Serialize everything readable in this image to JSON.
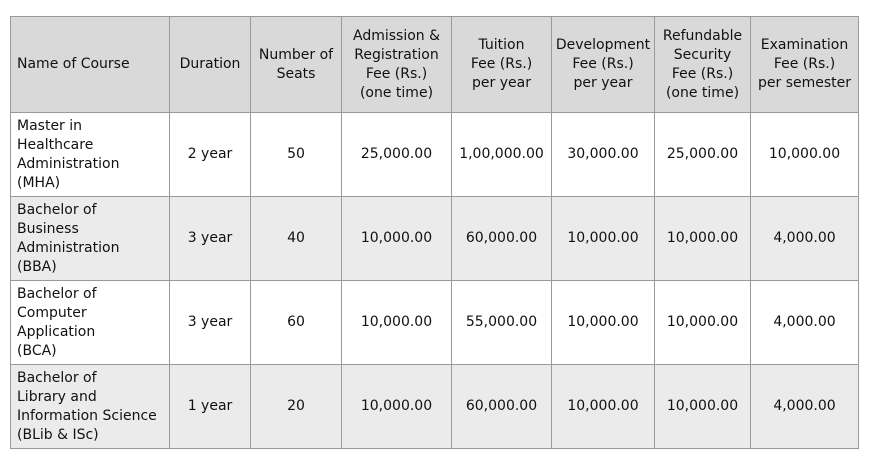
{
  "table": {
    "header": [
      [
        "Name of Course"
      ],
      [
        "Duration"
      ],
      [
        "Number of",
        "Seats"
      ],
      [
        "Admission &",
        "Registration",
        "Fee (Rs.)",
        "(one time)"
      ],
      [
        "Tuition",
        "Fee (Rs.)",
        "per year"
      ],
      [
        "Development",
        "Fee (Rs.)",
        "per year"
      ],
      [
        "Refundable",
        "Security",
        "Fee (Rs.)",
        "(one time)"
      ],
      [
        "Examination",
        "Fee (Rs.)",
        "per semester"
      ]
    ],
    "rows": [
      [
        [
          "Master in",
          "Healthcare",
          "Administration",
          "(MHA)"
        ],
        "2 year",
        "50",
        "25,000.00",
        "1,00,000.00",
        "30,000.00",
        "25,000.00",
        "10,000.00"
      ],
      [
        [
          "Bachelor of",
          "Business",
          "Administration",
          "(BBA)"
        ],
        "3 year",
        "40",
        "10,000.00",
        "60,000.00",
        "10,000.00",
        "10,000.00",
        "4,000.00"
      ],
      [
        [
          "Bachelor of",
          "Computer",
          "Application",
          "(BCA)"
        ],
        "3 year",
        "60",
        "10,000.00",
        "55,000.00",
        "10,000.00",
        "10,000.00",
        "4,000.00"
      ],
      [
        [
          "Bachelor of",
          "Library and",
          "Information Science",
          "(BLib & ISc)"
        ],
        "1 year",
        "20",
        "10,000.00",
        "60,000.00",
        "10,000.00",
        "10,000.00",
        "4,000.00"
      ]
    ]
  }
}
